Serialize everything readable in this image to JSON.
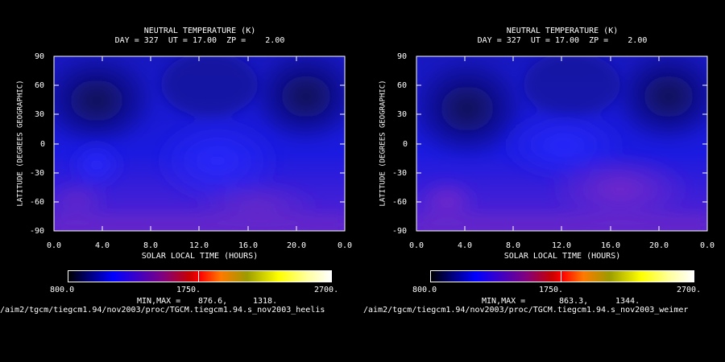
{
  "chart_data": [
    {
      "type": "heatmap",
      "title": "NEUTRAL TEMPERATURE (K)",
      "subtitle": "DAY = 327  UT = 17.00  ZP =    2.00",
      "xlabel": "SOLAR LOCAL TIME (HOURS)",
      "ylabel": "LATITUDE (DEGREES GEOGRAPHIC)",
      "xticks": [
        "0.0",
        "4.0",
        "8.0",
        "12.0",
        "16.0",
        "20.0",
        "0.0"
      ],
      "yticks": [
        "90",
        "60",
        "30",
        "0",
        "-30",
        "-60",
        "-90"
      ],
      "colorbar_labels": [
        "800.0",
        "1750.",
        "2700."
      ],
      "colorbar_range": [
        800,
        2700
      ],
      "minmax_label": "MIN,MAX =",
      "min": "876.6,",
      "max": "1318.",
      "source_path": "/aim2/tgcm/tiegcm1.94/nov2003/proc/TGCM.tiegcm1.94.s_nov2003_heelis"
    },
    {
      "type": "heatmap",
      "title": "NEUTRAL TEMPERATURE (K)",
      "subtitle": "DAY = 327  UT = 17.00  ZP =    2.00",
      "xlabel": "SOLAR LOCAL TIME (HOURS)",
      "ylabel": "LATITUDE (DEGREES GEOGRAPHIC)",
      "xticks": [
        "0.0",
        "4.0",
        "8.0",
        "12.0",
        "16.0",
        "20.0",
        "0.0"
      ],
      "yticks": [
        "90",
        "60",
        "30",
        "0",
        "-30",
        "-60",
        "-90"
      ],
      "colorbar_labels": [
        "800.0",
        "1750.",
        "2700."
      ],
      "colorbar_range": [
        800,
        2700
      ],
      "minmax_label": "MIN,MAX =",
      "min": "863.3,",
      "max": "1344.",
      "source_path": "/aim2/tgcm/tiegcm1.94/nov2003/proc/TGCM.tiegcm1.94.s_nov2003_weimer"
    }
  ]
}
